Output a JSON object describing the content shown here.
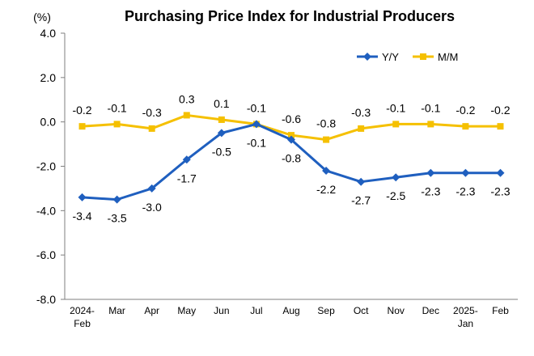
{
  "chart_data": {
    "type": "line",
    "title": "Purchasing Price Index for Industrial Producers",
    "unit_label": "(%)",
    "ylim": [
      -8.0,
      4.0
    ],
    "yticks": [
      "4.0",
      "2.0",
      "0.0",
      "-2.0",
      "-4.0",
      "-6.0",
      "-8.0"
    ],
    "ytick_values": [
      4,
      2,
      0,
      -2,
      -4,
      -6,
      -8
    ],
    "categories": [
      [
        "2024-",
        "Feb"
      ],
      [
        "Mar"
      ],
      [
        "Apr"
      ],
      [
        "May"
      ],
      [
        "Jun"
      ],
      [
        "Jul"
      ],
      [
        "Aug"
      ],
      [
        "Sep"
      ],
      [
        "Oct"
      ],
      [
        "Nov"
      ],
      [
        "Dec"
      ],
      [
        "2025-",
        "Jan"
      ],
      [
        "Feb"
      ]
    ],
    "grid": false,
    "legend_position": "top-right",
    "series": [
      {
        "name": "Y/Y",
        "color": "#1f5fbf",
        "marker": "diamond",
        "values": [
          -3.4,
          -3.5,
          -3.0,
          -1.7,
          -0.5,
          -0.1,
          -0.8,
          -2.2,
          -2.7,
          -2.5,
          -2.3,
          -2.3,
          -2.3
        ],
        "labels": [
          "-3.4",
          "-3.5",
          "-3.0",
          "-1.7",
          "-0.5",
          "-0.1",
          "-0.8",
          "-2.2",
          "-2.7",
          "-2.5",
          "-2.3",
          "-2.3",
          "-2.3"
        ]
      },
      {
        "name": "M/M",
        "color": "#f5c000",
        "marker": "square",
        "values": [
          -0.2,
          -0.1,
          -0.3,
          0.3,
          0.1,
          -0.1,
          -0.6,
          -0.8,
          -0.3,
          -0.1,
          -0.1,
          -0.2,
          -0.2
        ],
        "labels": [
          "-0.2",
          "-0.1",
          "-0.3",
          "0.3",
          "0.1",
          "-0.1",
          "-0.6",
          "-0.8",
          "-0.3",
          "-0.1",
          "-0.1",
          "-0.2",
          "-0.2"
        ]
      }
    ]
  }
}
